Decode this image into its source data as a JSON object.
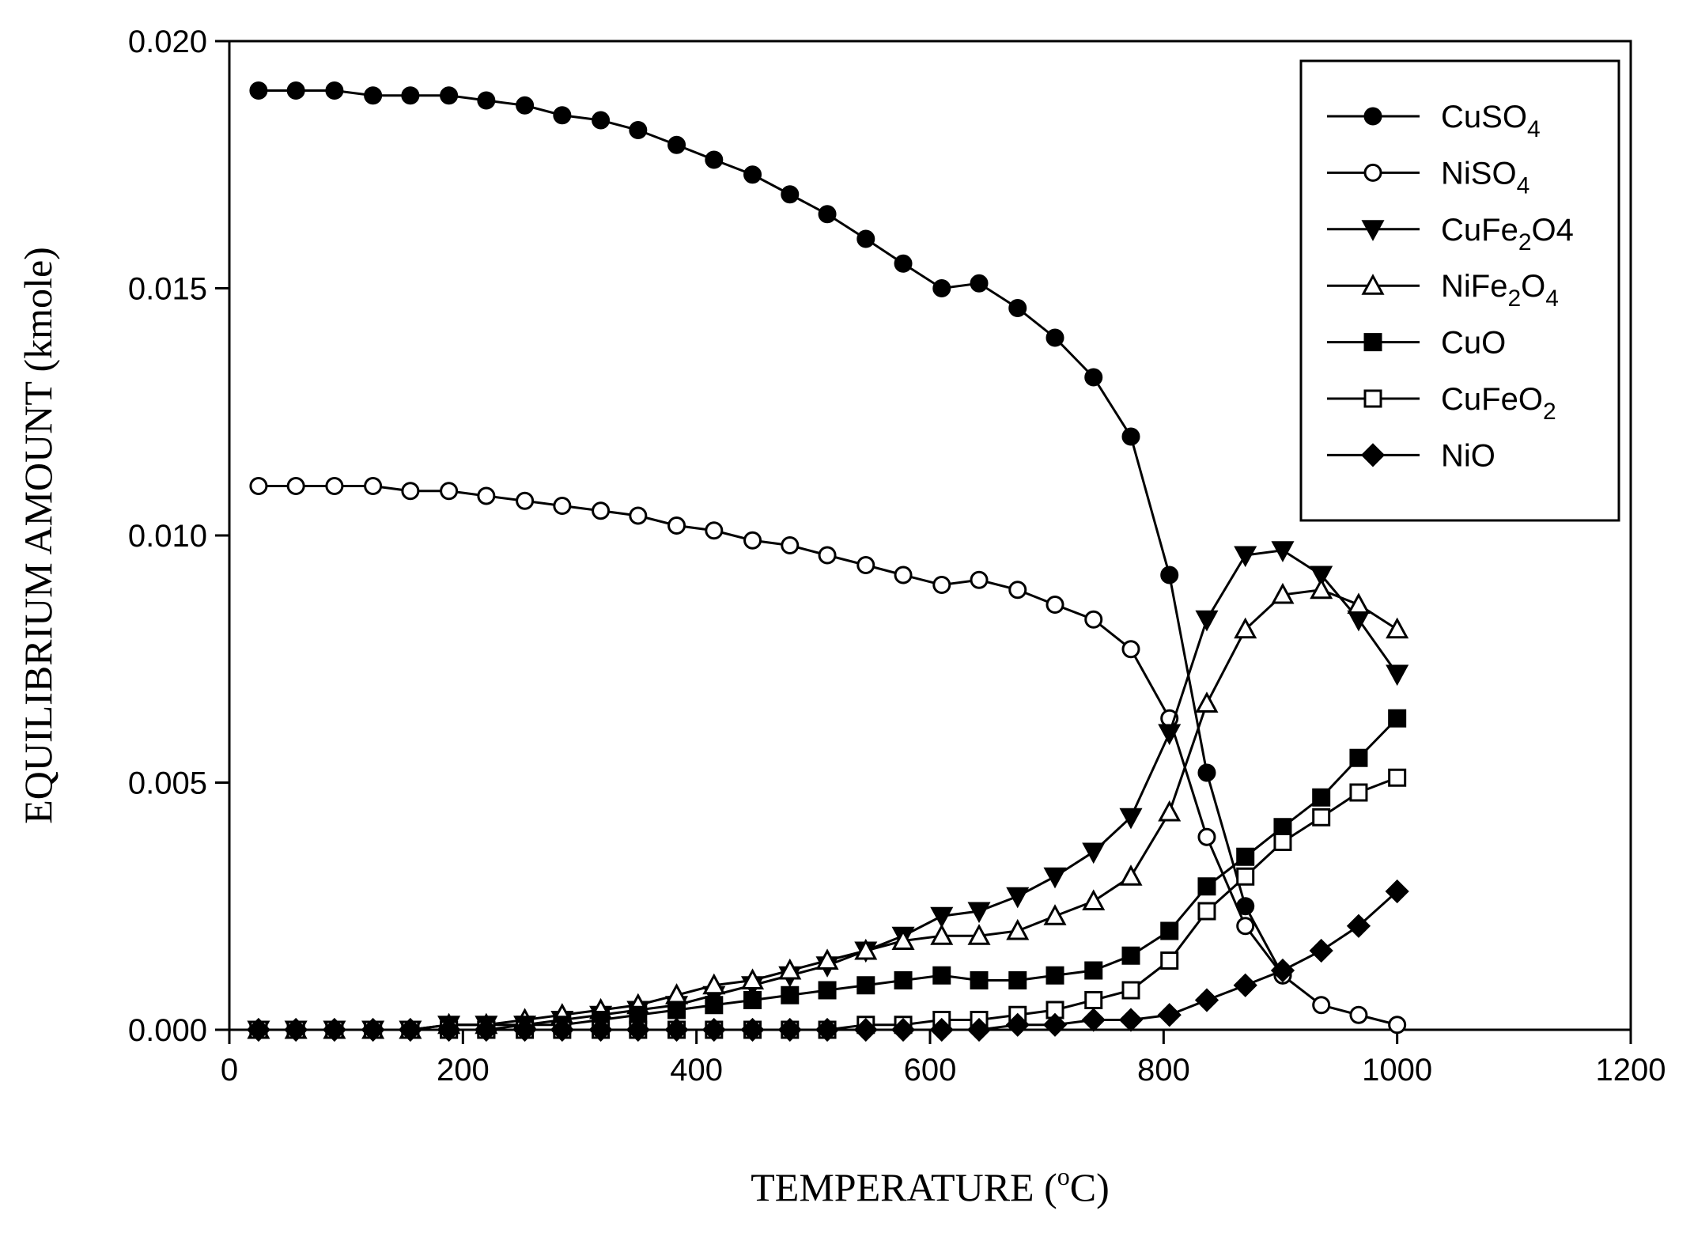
{
  "chart_data": {
    "type": "line",
    "title": "",
    "xlabel": "TEMPERATURE (",
    "xlabel_sup": "o",
    "xlabel_tail": "C)",
    "ylabel": "EQUILIBRIUM AMOUNT (kmole)",
    "xlim": [
      0,
      1200
    ],
    "ylim": [
      0,
      0.02
    ],
    "x_ticks": [
      "0",
      "200",
      "400",
      "600",
      "800",
      "1000",
      "1200"
    ],
    "y_ticks": [
      "0.000",
      "0.005",
      "0.010",
      "0.015",
      "0.020"
    ],
    "legend_position": "top-right",
    "x": [
      25,
      57,
      90,
      123,
      155,
      188,
      220,
      253,
      285,
      318,
      350,
      383,
      415,
      448,
      480,
      512,
      545,
      577,
      610,
      642,
      675,
      707,
      740,
      772,
      805,
      837,
      870,
      902,
      935,
      967,
      1000
    ],
    "series": [
      {
        "name": "CuSO4",
        "label_parts": [
          [
            "CuSO",
            ""
          ],
          [
            "4",
            "sub"
          ]
        ],
        "marker": "circle",
        "filled": true,
        "values": [
          0.019,
          0.019,
          0.019,
          0.0189,
          0.0189,
          0.0189,
          0.0188,
          0.0187,
          0.0185,
          0.0184,
          0.0182,
          0.0179,
          0.0176,
          0.0173,
          0.0169,
          0.0165,
          0.016,
          0.0155,
          0.015,
          0.0151,
          0.0146,
          0.014,
          0.0132,
          0.012,
          0.0092,
          0.0052,
          0.0025,
          0.0011,
          null,
          null,
          null
        ]
      },
      {
        "name": "NiSO4",
        "label_parts": [
          [
            "NiSO",
            ""
          ],
          [
            "4",
            "sub"
          ]
        ],
        "marker": "circle",
        "filled": false,
        "values": [
          0.011,
          0.011,
          0.011,
          0.011,
          0.0109,
          0.0109,
          0.0108,
          0.0107,
          0.0106,
          0.0105,
          0.0104,
          0.0102,
          0.0101,
          0.0099,
          0.0098,
          0.0096,
          0.0094,
          0.0092,
          0.009,
          0.0091,
          0.0089,
          0.0086,
          0.0083,
          0.0077,
          0.0063,
          0.0039,
          0.0021,
          0.0011,
          0.0005,
          0.0003,
          0.0001
        ]
      },
      {
        "name": "CuFe2O4",
        "label_parts": [
          [
            "CuFe",
            ""
          ],
          [
            "2",
            "sub"
          ],
          [
            "O4",
            ""
          ]
        ],
        "marker": "triangle-down",
        "filled": true,
        "values": [
          0.0,
          0.0,
          0.0,
          0.0,
          0.0,
          0.0001,
          0.0001,
          0.0001,
          0.0002,
          0.0003,
          0.0004,
          0.0005,
          0.0007,
          0.0009,
          0.0011,
          0.0013,
          0.0016,
          0.0019,
          0.0023,
          0.0024,
          0.0027,
          0.0031,
          0.0036,
          0.0043,
          0.006,
          0.0083,
          0.0096,
          0.0097,
          0.0092,
          0.0083,
          0.0072
        ]
      },
      {
        "name": "NiFe2O4",
        "label_parts": [
          [
            "NiFe",
            ""
          ],
          [
            "2",
            "sub"
          ],
          [
            "O",
            ""
          ],
          [
            "4",
            "sub"
          ]
        ],
        "marker": "triangle-up",
        "filled": false,
        "values": [
          0.0,
          0.0,
          0.0,
          0.0,
          0.0,
          0.0001,
          0.0001,
          0.0002,
          0.0003,
          0.0004,
          0.0005,
          0.0007,
          0.0009,
          0.001,
          0.0012,
          0.0014,
          0.0016,
          0.0018,
          0.0019,
          0.0019,
          0.002,
          0.0023,
          0.0026,
          0.0031,
          0.0044,
          0.0066,
          0.0081,
          0.0088,
          0.0089,
          0.0086,
          0.0081
        ]
      },
      {
        "name": "CuO",
        "label_parts": [
          [
            "CuO",
            ""
          ]
        ],
        "marker": "square",
        "filled": true,
        "values": [
          0.0,
          0.0,
          0.0,
          0.0,
          0.0,
          0.0,
          0.0,
          0.0001,
          0.0001,
          0.0002,
          0.0003,
          0.0004,
          0.0005,
          0.0006,
          0.0007,
          0.0008,
          0.0009,
          0.001,
          0.0011,
          0.001,
          0.001,
          0.0011,
          0.0012,
          0.0015,
          0.002,
          0.0029,
          0.0035,
          0.0041,
          0.0047,
          0.0055,
          0.0063
        ]
      },
      {
        "name": "CuFeO2",
        "label_parts": [
          [
            "CuFeO",
            ""
          ],
          [
            "2",
            "sub"
          ]
        ],
        "marker": "square",
        "filled": false,
        "values": [
          0.0,
          0.0,
          0.0,
          0.0,
          0.0,
          0.0,
          0.0,
          0.0,
          0.0,
          0.0,
          0.0,
          0.0,
          0.0,
          0.0,
          0.0,
          0.0,
          0.0001,
          0.0001,
          0.0002,
          0.0002,
          0.0003,
          0.0004,
          0.0006,
          0.0008,
          0.0014,
          0.0024,
          0.0031,
          0.0038,
          0.0043,
          0.0048,
          0.0051
        ]
      },
      {
        "name": "NiO",
        "label_parts": [
          [
            "NiO",
            ""
          ]
        ],
        "marker": "diamond",
        "filled": true,
        "values": [
          0.0,
          0.0,
          0.0,
          0.0,
          0.0,
          0.0,
          0.0,
          0.0,
          0.0,
          0.0,
          0.0,
          0.0,
          0.0,
          0.0,
          0.0,
          0.0,
          0.0,
          0.0,
          0.0,
          0.0,
          0.0001,
          0.0001,
          0.0002,
          0.0002,
          0.0003,
          0.0006,
          0.0009,
          0.0012,
          0.0016,
          0.0021,
          0.0028
        ]
      }
    ]
  }
}
